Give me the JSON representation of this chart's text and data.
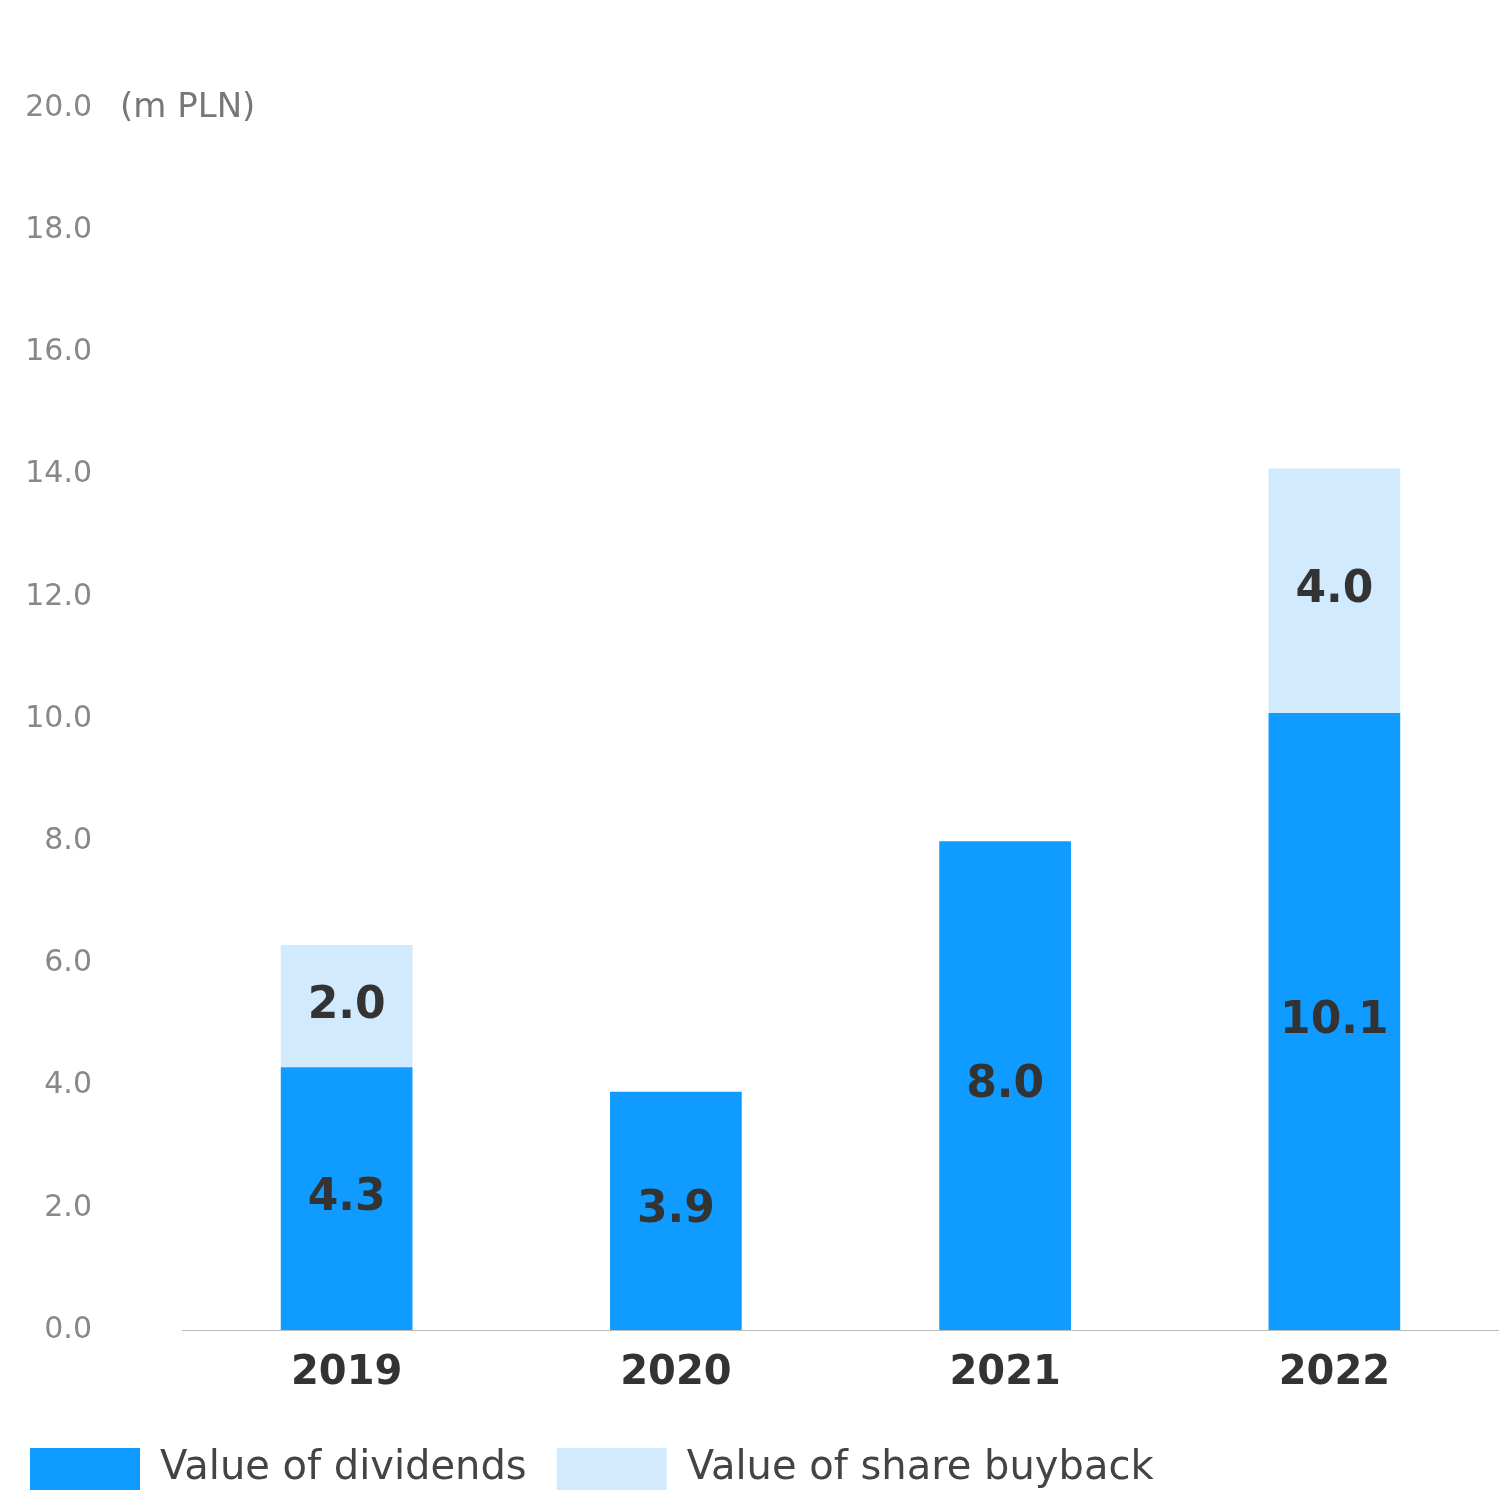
{
  "chart_data": {
    "type": "bar",
    "ylabel": "(m PLN)",
    "categories": [
      "2019",
      "2020",
      "2021",
      "2022"
    ],
    "stacked": true,
    "series": [
      {
        "name": "Value of dividends",
        "color": "#0f9bff",
        "values": [
          4.3,
          3.9,
          8.0,
          10.1
        ],
        "value_labels": [
          "4.3",
          "3.9",
          "8.0",
          "10.1"
        ]
      },
      {
        "name": "Value of share buyback",
        "color": "#d1eafd",
        "values": [
          2.0,
          null,
          null,
          4.0
        ],
        "value_labels": [
          "2.0",
          null,
          null,
          "4.0"
        ]
      }
    ],
    "ylim": [
      0,
      20
    ],
    "yticks": [
      {
        "value": 0,
        "label": "0.0"
      },
      {
        "value": 2,
        "label": "2.0"
      },
      {
        "value": 4,
        "label": "4.0"
      },
      {
        "value": 6,
        "label": "6.0"
      },
      {
        "value": 8,
        "label": "8.0"
      },
      {
        "value": 10,
        "label": "10.0"
      },
      {
        "value": 12,
        "label": "12.0"
      },
      {
        "value": 14,
        "label": "14.0"
      },
      {
        "value": 16,
        "label": "16.0"
      },
      {
        "value": 18,
        "label": "18.0"
      },
      {
        "value": 20,
        "label": "20.0"
      }
    ],
    "grid": false,
    "legend": "bottom"
  }
}
